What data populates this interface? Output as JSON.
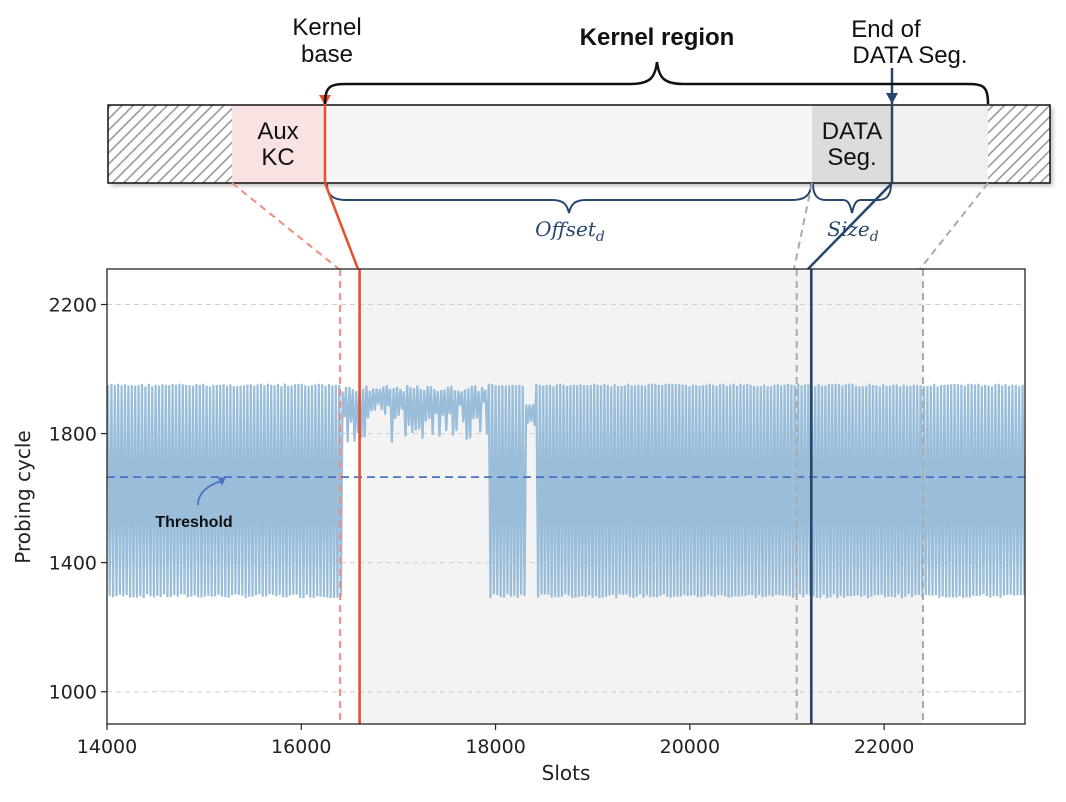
{
  "diagram": {
    "labels": {
      "kernel_base": [
        "Kernel",
        "base"
      ],
      "kernel_region": "Kernel region",
      "end_data": [
        "End of",
        "DATA Seg."
      ],
      "aux_kc": [
        "Aux",
        "KC"
      ],
      "data_seg": [
        "DATA",
        "Seg."
      ],
      "offset": "Offset",
      "offset_sub": "d",
      "size": "Size",
      "size_sub": "d"
    },
    "colors": {
      "aux": "#f8e3e2",
      "kernel": "#f5f5f5",
      "data": "#dcdcdc",
      "red": "#e5502f",
      "blue": "#27466c"
    }
  },
  "chart_data": {
    "type": "line",
    "xlabel": "Slots",
    "ylabel": "Probing cycle",
    "xlim": [
      14000,
      23450
    ],
    "ylim": [
      900,
      2310
    ],
    "xticks": [
      14000,
      16000,
      18000,
      20000,
      22000
    ],
    "yticks": [
      1000,
      1400,
      1800,
      2200
    ],
    "grid": "horizontal dashed",
    "threshold": {
      "value": 1665,
      "label": "Threshold",
      "color": "#4a72c4"
    },
    "signal": {
      "color": "#95b9d8",
      "high": 1955,
      "low": 1290,
      "kernel_text_range": [
        16420,
        17900
      ],
      "kernel_text_level": [
        1810,
        1940
      ],
      "hit_block_1": [
        17900,
        18300
      ],
      "hit_block_2": [
        18400,
        23450
      ]
    },
    "markers": [
      {
        "name": "aux-start",
        "x": 16400,
        "style": "dashed",
        "color": "#f08d80"
      },
      {
        "name": "kernel-base",
        "x": 16600,
        "style": "solid",
        "color": "#e5502f"
      },
      {
        "name": "data-start",
        "x": 21100,
        "style": "dashed",
        "color": "#aaaaaa"
      },
      {
        "name": "data-end",
        "x": 21250,
        "style": "solid",
        "color": "#27466c"
      },
      {
        "name": "region-end",
        "x": 22400,
        "style": "dashed",
        "color": "#aaaaaa"
      }
    ],
    "shaded_range": [
      16600,
      22400
    ]
  }
}
